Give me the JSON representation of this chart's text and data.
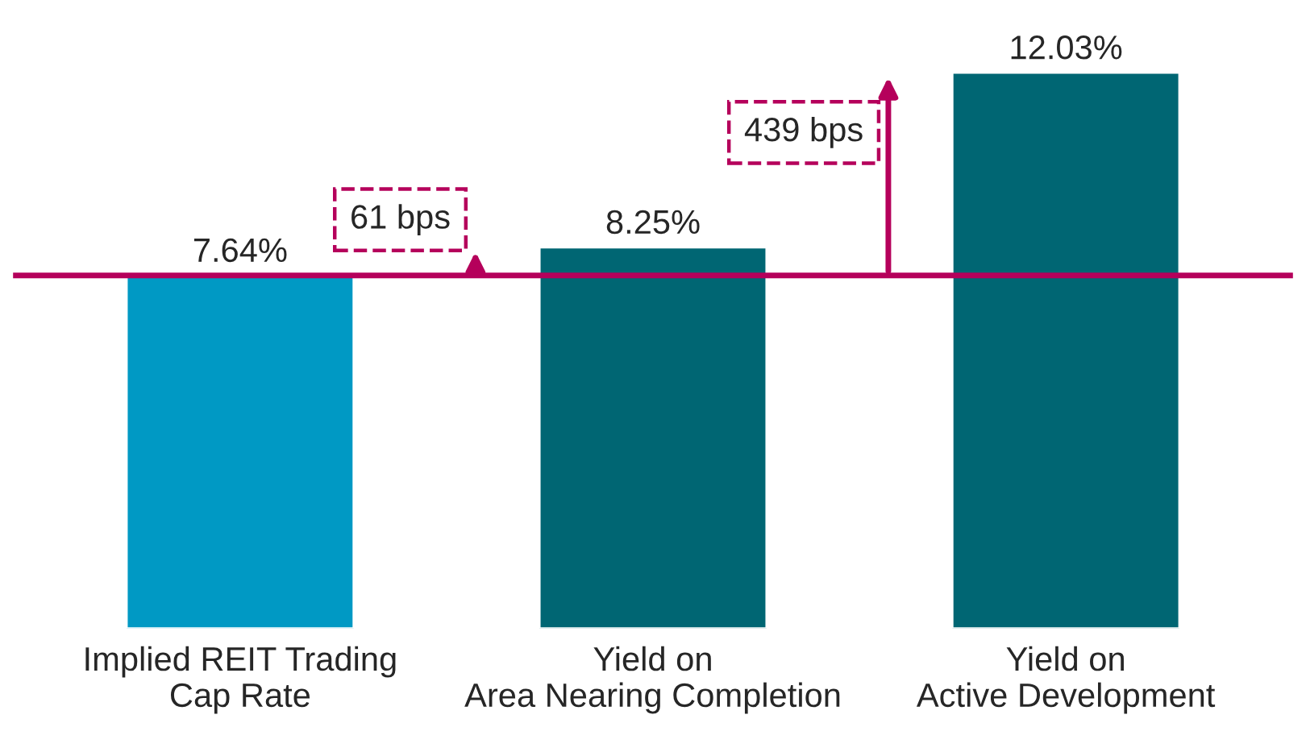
{
  "chart_data": {
    "type": "bar",
    "categories": [
      "Implied REIT Trading\nCap Rate",
      "Yield on\nArea Nearing Completion",
      "Yield on\nActive Development"
    ],
    "values": [
      7.64,
      8.25,
      12.03
    ],
    "colors": [
      "#0099c4",
      "#006673",
      "#006673"
    ],
    "value_labels": [
      "7.64%",
      "8.25%",
      "12.03%"
    ],
    "ref_lines": [
      {
        "axis": "y",
        "value": 7.64,
        "color": "#b5005b"
      }
    ],
    "annotations": [
      "61 bps",
      "439 bps"
    ],
    "tick_labels": "x",
    "grid": false,
    "legend": false
  }
}
